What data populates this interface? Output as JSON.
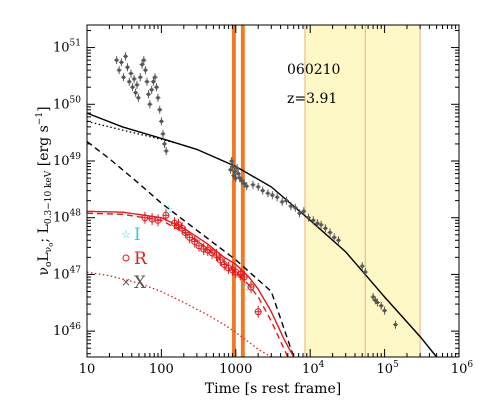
{
  "chart_data": {
    "type": "scatter",
    "title": "",
    "annotations": [
      "060210",
      "z=3.91"
    ],
    "xlabel": "Time [s rest frame]",
    "ylabel_parts": [
      "ν",
      "o",
      "L",
      "ν",
      "o",
      "; L",
      "0.3−10 keV",
      " [erg s",
      "−1",
      "]"
    ],
    "x_scale": "log",
    "y_scale": "log",
    "xlim": [
      10,
      1000000
    ],
    "ylim": [
      3.5e+45,
      2.5e+51
    ],
    "grid": false,
    "legend_position": "lower-left",
    "x_ticks": [
      {
        "value": 10,
        "label": "10"
      },
      {
        "value": 100,
        "label": "100"
      },
      {
        "value": 1000,
        "label": "1000"
      },
      {
        "value": 10000,
        "label": "10",
        "exp": "4"
      },
      {
        "value": 100000,
        "label": "10",
        "exp": "5"
      },
      {
        "value": 1000000,
        "label": "10",
        "exp": "6"
      }
    ],
    "y_ticks": [
      {
        "value": 1e+46,
        "label": "10",
        "exp": "46"
      },
      {
        "value": 1e+47,
        "label": "10",
        "exp": "47"
      },
      {
        "value": 1e+48,
        "label": "10",
        "exp": "48"
      },
      {
        "value": 1e+49,
        "label": "10",
        "exp": "49"
      },
      {
        "value": 1e+50,
        "label": "10",
        "exp": "50"
      },
      {
        "value": 1e+51,
        "label": "10",
        "exp": "51"
      }
    ],
    "legend": [
      {
        "symbol": "☆",
        "label": "I",
        "color": "#22d3d3"
      },
      {
        "symbol": "o",
        "label": "R",
        "color": "#e31a1c"
      },
      {
        "symbol": "×",
        "label": "X",
        "color": "#555555"
      }
    ],
    "shaded_bands": [
      {
        "x0": 8500,
        "x1": 300000,
        "color": "#fdf8c6",
        "edges": [
          8500,
          55000,
          300000
        ],
        "edge_color": "#f0b070"
      }
    ],
    "vertical_bars": [
      {
        "x0": 890,
        "x1": 1000,
        "color": "#f07820"
      },
      {
        "x0": 1170,
        "x1": 1320,
        "color": "#f07820"
      }
    ],
    "series": [
      {
        "name": "X",
        "kind": "points",
        "color": "#555555",
        "points": [
          [
            25,
            6e+50
          ],
          [
            27,
            4e+50
          ],
          [
            29,
            5.5e+50
          ],
          [
            31,
            3e+50
          ],
          [
            33,
            7e+50
          ],
          [
            35,
            4.5e+50
          ],
          [
            37,
            2.5e+50
          ],
          [
            39,
            3.5e+50
          ],
          [
            41,
            2e+50
          ],
          [
            43,
            2.8e+50
          ],
          [
            45,
            1.6e+50
          ],
          [
            47,
            2.2e+50
          ],
          [
            49,
            1.3e+50
          ],
          [
            52,
            3e+50
          ],
          [
            55,
            5e+50
          ],
          [
            58,
            6e+50
          ],
          [
            61,
            4e+50
          ],
          [
            64,
            2.5e+50
          ],
          [
            67,
            1.5e+50
          ],
          [
            70,
            1e+50
          ],
          [
            74,
            1.8e+50
          ],
          [
            78,
            2.5e+50
          ],
          [
            82,
            3e+50
          ],
          [
            86,
            2e+50
          ],
          [
            90,
            1.3e+50
          ],
          [
            95,
            8e+49
          ],
          [
            100,
            5e+49
          ],
          [
            105,
            3e+49
          ],
          [
            110,
            2e+49
          ],
          [
            116,
            1.5e+49
          ],
          [
            850,
            7e+48
          ],
          [
            880,
            1e+49
          ],
          [
            910,
            8e+48
          ],
          [
            940,
            5.5e+48
          ],
          [
            970,
            6.5e+48
          ],
          [
            1000,
            5e+48
          ],
          [
            1040,
            7.5e+48
          ],
          [
            1080,
            6e+48
          ],
          [
            1130,
            5e+48
          ],
          [
            1200,
            4.5e+48
          ],
          [
            1300,
            4e+48
          ],
          [
            1400,
            3.6e+48
          ],
          [
            1700,
            3.8e+48
          ],
          [
            2000,
            3.5e+48
          ],
          [
            2300,
            3e+48
          ],
          [
            2700,
            2.7e+48
          ],
          [
            3100,
            2.5e+48
          ],
          [
            3600,
            2.3e+48
          ],
          [
            4200,
            1.9e+48
          ],
          [
            4800,
            2e+48
          ],
          [
            5500,
            1.6e+48
          ],
          [
            6300,
            1.5e+48
          ],
          [
            7200,
            1.2e+48
          ],
          [
            8200,
            1.3e+48
          ],
          [
            9500,
            1e+48
          ],
          [
            11000,
            9e+47
          ],
          [
            12500,
            8e+47
          ],
          [
            14000,
            7.5e+47
          ],
          [
            16000,
            6.5e+47
          ],
          [
            18500,
            5.5e+47
          ],
          [
            21000,
            4.5e+47
          ],
          [
            24000,
            4e+47
          ],
          [
            50000,
            1.4e+47
          ],
          [
            55000,
            1.1e+47
          ],
          [
            70000,
            4e+46
          ],
          [
            75000,
            3.5e+46
          ],
          [
            80000,
            3.2e+46
          ],
          [
            90000,
            2.8e+46
          ],
          [
            100000,
            2.3e+46
          ],
          [
            140000,
            1.3e+46
          ]
        ]
      },
      {
        "name": "R",
        "kind": "points",
        "color": "#e31a1c",
        "points": [
          [
            60,
            1e+48
          ],
          [
            75,
            9.5e+47
          ],
          [
            90,
            9e+47
          ],
          [
            115,
            1.1e+48
          ],
          [
            150,
            8e+47
          ],
          [
            170,
            7.5e+47
          ],
          [
            190,
            6.5e+47
          ],
          [
            210,
            5.5e+47
          ],
          [
            240,
            4.5e+47
          ],
          [
            280,
            3.8e+47
          ],
          [
            320,
            3.2e+47
          ],
          [
            370,
            2.8e+47
          ],
          [
            420,
            2.7e+47
          ],
          [
            480,
            2.4e+47
          ],
          [
            550,
            2.2e+47
          ],
          [
            620,
            1.8e+47
          ],
          [
            700,
            1.5e+47
          ],
          [
            800,
            1.3e+47
          ],
          [
            900,
            1.2e+47
          ],
          [
            1000,
            1.1e+47
          ],
          [
            1150,
            1e+47
          ],
          [
            1300,
            9e+46
          ],
          [
            1600,
            6e+46
          ],
          [
            2000,
            2.2e+46
          ]
        ]
      },
      {
        "name": "I",
        "kind": "points",
        "color": "#22d3d3",
        "points": [
          [
            125,
            1.4e+48
          ],
          [
            1350,
            6e+46
          ]
        ]
      },
      {
        "name": "X model",
        "kind": "line",
        "color": "#000000",
        "style": "solid",
        "points": [
          [
            10,
            7e+49
          ],
          [
            30,
            4e+49
          ],
          [
            100,
            2.5e+49
          ],
          [
            300,
            1.6e+49
          ],
          [
            1000,
            8e+48
          ],
          [
            3000,
            3.5e+48
          ],
          [
            10000,
            9e+47
          ],
          [
            30000,
            2.5e+47
          ],
          [
            100000,
            4e+46
          ],
          [
            300000,
            8e+45
          ],
          [
            500000,
            3.5e+45
          ]
        ]
      },
      {
        "name": "X model component 1",
        "kind": "line",
        "color": "#000000",
        "style": "dotted",
        "points": [
          [
            10,
            5e+49
          ],
          [
            30,
            3.5e+49
          ],
          [
            100,
            2.4e+49
          ],
          [
            150,
            2.1e+49
          ]
        ]
      },
      {
        "name": "X model component 2",
        "kind": "line",
        "color": "#000000",
        "style": "dashed",
        "points": [
          [
            10,
            2.2e+49
          ],
          [
            20,
            1.1e+49
          ],
          [
            50,
            4e+48
          ],
          [
            100,
            1.8e+48
          ],
          [
            300,
            6e+47
          ],
          [
            1000,
            1.8e+47
          ],
          [
            3000,
            5e+46
          ],
          [
            6000,
            3.5e+45
          ]
        ]
      },
      {
        "name": "optical model",
        "kind": "line",
        "color": "#e31a1c",
        "style": "solid",
        "points": [
          [
            10,
            1.3e+48
          ],
          [
            30,
            1.25e+48
          ],
          [
            100,
            1e+48
          ],
          [
            200,
            6.5e+47
          ],
          [
            400,
            3.6e+47
          ],
          [
            700,
            2e+47
          ],
          [
            1000,
            1.5e+47
          ],
          [
            1500,
            9e+46
          ],
          [
            2000,
            5.5e+46
          ],
          [
            3000,
            2.2e+46
          ],
          [
            4500,
            7e+45
          ],
          [
            6000,
            3.5e+45
          ]
        ]
      },
      {
        "name": "optical model component 1",
        "kind": "line",
        "color": "#e31a1c",
        "style": "dashed",
        "points": [
          [
            10,
            1.2e+48
          ],
          [
            30,
            1.15e+48
          ],
          [
            100,
            9e+47
          ],
          [
            200,
            5.5e+47
          ],
          [
            400,
            3e+47
          ],
          [
            700,
            1.6e+47
          ],
          [
            1000,
            1.1e+47
          ],
          [
            1500,
            6.5e+46
          ],
          [
            2000,
            4e+46
          ],
          [
            3000,
            1.5e+46
          ],
          [
            5000,
            3.5e+45
          ]
        ]
      },
      {
        "name": "optical model component 2",
        "kind": "line",
        "color": "#e31a1c",
        "style": "dotted",
        "points": [
          [
            10,
            1.1e+47
          ],
          [
            20,
            9.5e+46
          ],
          [
            50,
            7e+46
          ],
          [
            100,
            5e+46
          ],
          [
            200,
            3.2e+46
          ],
          [
            400,
            2e+46
          ],
          [
            700,
            1.3e+46
          ],
          [
            1000,
            9.5e+45
          ],
          [
            2000,
            4.8e+45
          ],
          [
            3000,
            3.5e+45
          ]
        ]
      }
    ]
  }
}
